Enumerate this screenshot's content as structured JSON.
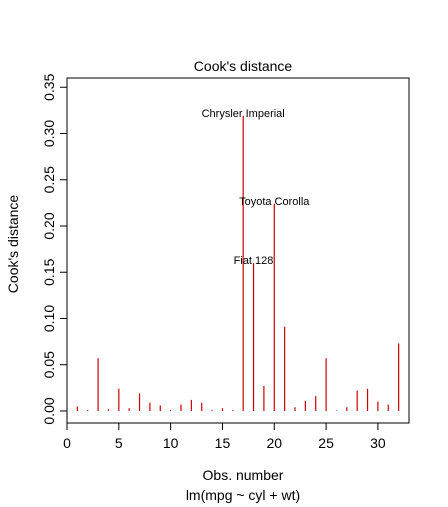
{
  "chart_data": {
    "type": "bar",
    "title": "Cook's distance",
    "xlabel": "Obs. number",
    "subtitle": "lm(mpg ~ cyl + wt)",
    "ylabel": "Cook's distance",
    "xlim": [
      0,
      33
    ],
    "ylim": [
      -0.013,
      0.36
    ],
    "x_ticks": [
      0,
      5,
      10,
      15,
      20,
      25,
      30
    ],
    "y_ticks": [
      0.0,
      0.05,
      0.1,
      0.15,
      0.2,
      0.25,
      0.3,
      0.35
    ],
    "y_tick_labels": [
      "0.00",
      "0.05",
      "0.10",
      "0.15",
      "0.20",
      "0.25",
      "0.30",
      "0.35"
    ],
    "bar_color": "#cc0000",
    "x": [
      1,
      2,
      3,
      4,
      5,
      6,
      7,
      8,
      9,
      10,
      11,
      12,
      13,
      14,
      15,
      16,
      17,
      18,
      19,
      20,
      21,
      22,
      23,
      24,
      25,
      26,
      27,
      28,
      29,
      30,
      31,
      32
    ],
    "values": [
      0.005,
      0.001,
      0.057,
      0.002,
      0.024,
      0.003,
      0.019,
      0.009,
      0.006,
      0.001,
      0.007,
      0.012,
      0.009,
      0.001,
      0.003,
      0.001,
      0.319,
      0.16,
      0.027,
      0.224,
      0.091,
      0.004,
      0.011,
      0.016,
      0.057,
      0.0005,
      0.004,
      0.022,
      0.024,
      0.01,
      0.007,
      0.073
    ],
    "annotations": [
      {
        "obs": 17,
        "label": "Chrysler Imperial"
      },
      {
        "obs": 20,
        "label": "Toyota Corolla"
      },
      {
        "obs": 18,
        "label": "Fiat 128"
      }
    ]
  }
}
